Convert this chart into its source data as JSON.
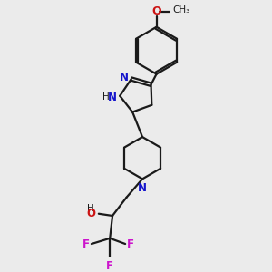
{
  "bg_color": "#ebebeb",
  "bond_color": "#1a1a1a",
  "N_color": "#1414cc",
  "O_color": "#cc1414",
  "F_color": "#cc14cc",
  "line_width": 1.6,
  "figsize": [
    3.0,
    3.0
  ],
  "dpi": 100,
  "xlim": [
    0,
    10
  ],
  "ylim": [
    0,
    10
  ]
}
